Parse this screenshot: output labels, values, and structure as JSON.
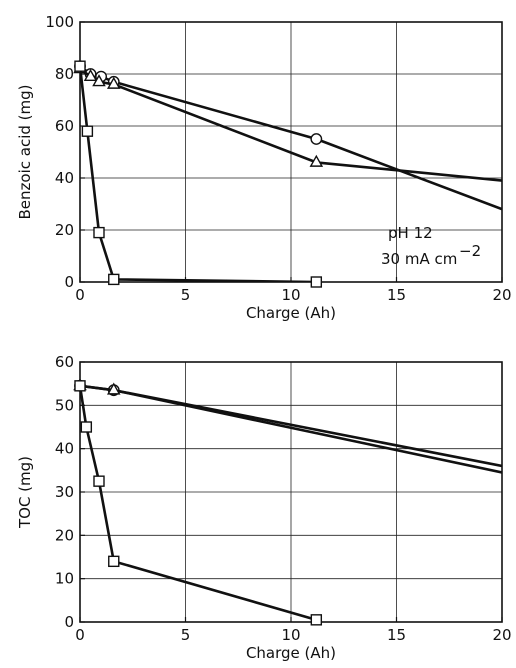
{
  "chart_data": [
    {
      "type": "line",
      "xlabel": "Charge (Ah)",
      "ylabel": "Benzoic acid (mg)",
      "xlim": [
        0,
        20
      ],
      "ylim": [
        0,
        100
      ],
      "x_ticks": [
        0,
        5,
        10,
        15,
        20
      ],
      "y_ticks": [
        0,
        20,
        40,
        60,
        80,
        100
      ],
      "x_tick_labels": [
        "0",
        "5",
        "10",
        "15",
        "20"
      ],
      "y_tick_labels": [
        "0",
        "20",
        "40",
        "60",
        "80",
        "100"
      ],
      "grid": true,
      "annotation": {
        "ph": "pH 12",
        "current": "30 mA cm",
        "exponent": "−2"
      },
      "series": [
        {
          "marker": "circle",
          "x": [
            0,
            0.5,
            1.0,
            1.6,
            11.2,
            20
          ],
          "y": [
            83,
            80,
            79,
            77,
            55,
            28
          ]
        },
        {
          "marker": "triangle",
          "x": [
            0,
            0.5,
            0.9,
            1.6,
            11.2,
            20
          ],
          "y": [
            82,
            79,
            77,
            76,
            46,
            39
          ]
        },
        {
          "marker": "square",
          "x": [
            0,
            0.35,
            0.9,
            1.6,
            11.2
          ],
          "y": [
            83,
            58,
            19,
            1,
            0
          ]
        }
      ]
    },
    {
      "type": "line",
      "xlabel": "Charge (Ah)",
      "ylabel": "TOC (mg)",
      "xlim": [
        0,
        20
      ],
      "ylim": [
        0,
        60
      ],
      "x_ticks": [
        0,
        5,
        10,
        15,
        20
      ],
      "y_ticks": [
        0,
        10,
        20,
        30,
        40,
        50,
        60
      ],
      "x_tick_labels": [
        "0",
        "5",
        "10",
        "15",
        "20"
      ],
      "y_tick_labels": [
        "0",
        "10",
        "20",
        "30",
        "40",
        "50",
        "60"
      ],
      "grid": true,
      "series": [
        {
          "marker": "circle",
          "x": [
            0,
            1.6,
            20
          ],
          "y": [
            54.5,
            53.5,
            36
          ]
        },
        {
          "marker": "triangle",
          "x": [
            0,
            1.6,
            20
          ],
          "y": [
            54.5,
            53.5,
            34.5
          ]
        },
        {
          "marker": "square",
          "x": [
            0,
            0.3,
            0.9,
            1.6,
            11.2
          ],
          "y": [
            54.5,
            45,
            32.5,
            14,
            0.5
          ]
        }
      ]
    }
  ]
}
